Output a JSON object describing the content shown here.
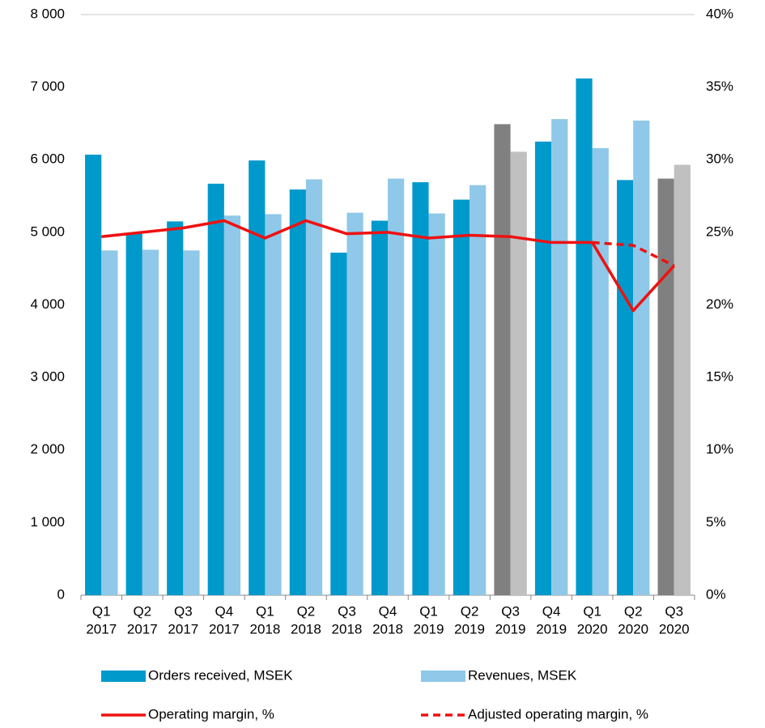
{
  "chart_data": {
    "type": "bar_line",
    "categories": [
      [
        "Q1",
        "2017"
      ],
      [
        "Q2",
        "2017"
      ],
      [
        "Q3",
        "2017"
      ],
      [
        "Q4",
        "2017"
      ],
      [
        "Q1",
        "2018"
      ],
      [
        "Q2",
        "2018"
      ],
      [
        "Q3",
        "2018"
      ],
      [
        "Q4",
        "2018"
      ],
      [
        "Q1",
        "2019"
      ],
      [
        "Q2",
        "2019"
      ],
      [
        "Q3",
        "2019"
      ],
      [
        "Q4",
        "2019"
      ],
      [
        "Q1",
        "2020"
      ],
      [
        "Q2",
        "2020"
      ],
      [
        "Q3",
        "2020"
      ]
    ],
    "series": [
      {
        "name": "Orders received, MSEK",
        "type": "bar",
        "color": "#0099cc",
        "colors": [
          "#0099cc",
          "#0099cc",
          "#0099cc",
          "#0099cc",
          "#0099cc",
          "#0099cc",
          "#0099cc",
          "#0099cc",
          "#0099cc",
          "#0099cc",
          "#808080",
          "#0099cc",
          "#0099cc",
          "#0099cc",
          "#808080"
        ],
        "values": [
          6070,
          4990,
          5150,
          5670,
          5990,
          5590,
          4720,
          5160,
          5690,
          5450,
          6490,
          6250,
          7120,
          5720,
          5740
        ]
      },
      {
        "name": "Revenues, MSEK",
        "type": "bar",
        "color": "#8fc8e8",
        "colors": [
          "#8fc8e8",
          "#8fc8e8",
          "#8fc8e8",
          "#8fc8e8",
          "#8fc8e8",
          "#8fc8e8",
          "#8fc8e8",
          "#8fc8e8",
          "#8fc8e8",
          "#8fc8e8",
          "#c0c0c0",
          "#8fc8e8",
          "#8fc8e8",
          "#8fc8e8",
          "#c0c0c0"
        ],
        "values": [
          4750,
          4760,
          4750,
          5230,
          5250,
          5730,
          5270,
          5740,
          5260,
          5650,
          6110,
          6560,
          6160,
          6540,
          5930
        ]
      },
      {
        "name": "Operating margin, %",
        "type": "line",
        "axis": "y2",
        "color": "#ee1111",
        "dashed": false,
        "values": [
          24.7,
          25.0,
          25.3,
          25.8,
          24.6,
          25.8,
          24.9,
          25.0,
          24.6,
          24.8,
          24.7,
          24.3,
          24.3,
          19.6,
          22.7
        ]
      },
      {
        "name": "Adjusted operating margin, %",
        "type": "line",
        "axis": "y2",
        "color": "#ee1111",
        "dashed": true,
        "values": [
          null,
          null,
          null,
          null,
          null,
          null,
          null,
          null,
          null,
          null,
          null,
          null,
          24.3,
          24.1,
          22.7
        ]
      }
    ],
    "ylim": [
      0,
      8000
    ],
    "yticks": [
      0,
      {
        "value": 1000,
        "label": "1 000"
      },
      {
        "value": 2000,
        "label": "2 000"
      },
      {
        "value": 3000,
        "label": "3 000"
      },
      {
        "value": 4000,
        "label": "4 000"
      },
      {
        "value": 5000,
        "label": "5 000"
      },
      {
        "value": 6000,
        "label": "6 000"
      },
      {
        "value": 7000,
        "label": "7 000"
      },
      {
        "value": 8000,
        "label": "8 000"
      }
    ],
    "y2lim": [
      0,
      40
    ],
    "y2ticks": [
      {
        "value": 0,
        "label": "0%"
      },
      {
        "value": 5,
        "label": "5%"
      },
      {
        "value": 10,
        "label": "10%"
      },
      {
        "value": 15,
        "label": "15%"
      },
      {
        "value": 20,
        "label": "20%"
      },
      {
        "value": 25,
        "label": "25%"
      },
      {
        "value": 30,
        "label": "30%"
      },
      {
        "value": 35,
        "label": "35%"
      },
      {
        "value": 40,
        "label": "40%"
      }
    ],
    "grid": false,
    "legend": "bottom"
  }
}
